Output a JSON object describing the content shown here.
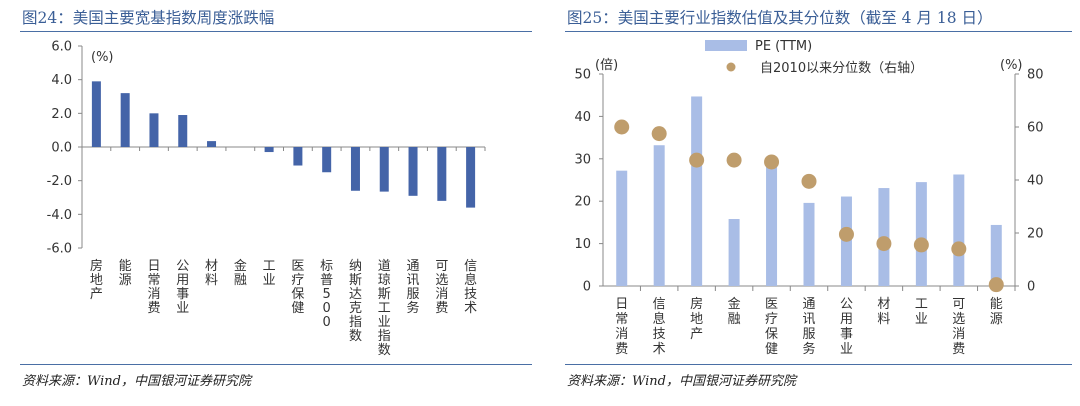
{
  "charts": [
    {
      "title": "图24：美国主要宽基指数周度涨跌幅",
      "source": "资料来源：Wind，中国银河证券研究院"
    },
    {
      "title": "图25：美国主要行业指数估值及其分位数（截至 4 月 18 日）",
      "source": "资料来源：Wind，中国银河证券研究院"
    }
  ],
  "chart_data": [
    {
      "type": "bar",
      "title": "",
      "ylabel": "(%)",
      "ylim": [
        -6,
        6
      ],
      "yticks": [
        "6.0",
        "4.0",
        "2.0",
        "0.0",
        "-2.0",
        "-4.0",
        "-6.0"
      ],
      "categories": [
        "房地产",
        "能源",
        "日常消费",
        "公用事业",
        "材料",
        "金融",
        "工业",
        "医疗保健",
        "标普500",
        "纳斯达克指数",
        "道琼斯工业指数",
        "通讯服务",
        "可选消费",
        "信息技术"
      ],
      "values": [
        3.9,
        3.2,
        2.0,
        1.9,
        0.35,
        0.0,
        -0.3,
        -1.1,
        -1.5,
        -2.6,
        -2.65,
        -2.9,
        -3.2,
        -3.6
      ],
      "colors": {
        "bar": "#4464a8"
      }
    },
    {
      "type": "bar",
      "title": "",
      "ylabel_left": "(倍)",
      "ylabel_right": "(%)",
      "ylim": [
        0,
        50
      ],
      "ylim_right": [
        0,
        80
      ],
      "yticks": [
        "0",
        "10",
        "20",
        "30",
        "40",
        "50"
      ],
      "yticks_right": [
        "0",
        "20",
        "40",
        "60",
        "80"
      ],
      "categories": [
        "日常消费",
        "信息技术",
        "房地产",
        "金融",
        "医疗保健",
        "通讯服务",
        "公用事业",
        "材料",
        "工业",
        "可选消费",
        "能源"
      ],
      "series": [
        {
          "name": "PE (TTM)",
          "kind": "bar",
          "axis": "left",
          "values": [
            27.2,
            33.2,
            44.7,
            15.8,
            29.0,
            19.6,
            21.1,
            23.1,
            24.5,
            26.3,
            14.4
          ]
        },
        {
          "name": "自2010以来分位数（右轴）",
          "kind": "scatter",
          "axis": "right",
          "values": [
            60.0,
            57.5,
            47.5,
            47.5,
            46.8,
            39.5,
            19.5,
            16.0,
            15.5,
            14.0,
            0.5
          ]
        }
      ],
      "legend": "top-center",
      "colors": {
        "bar": "#a9bde6",
        "dot": "#bf9d6c"
      }
    }
  ]
}
